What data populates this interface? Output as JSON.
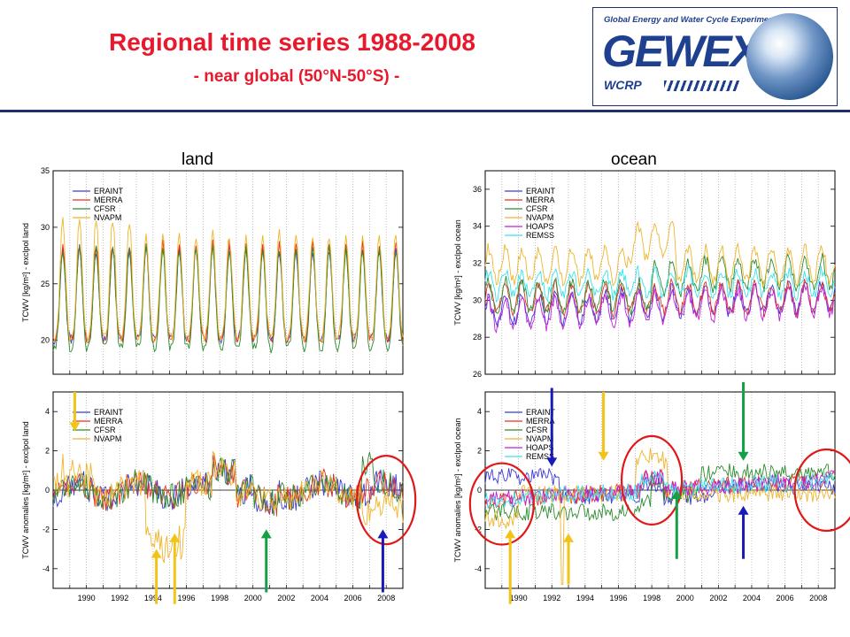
{
  "header": {
    "title": "Regional time series 1988-2008",
    "subtitle": "- near global (50°N-50°S) -",
    "logo_caption": "Global Energy and Water Cycle Experiment",
    "logo_word": "GEWEX",
    "logo_sub": "WCRP",
    "rule_color": "#1f2f6b",
    "title_color": "#e8192c"
  },
  "panel_labels": {
    "land": "land",
    "ocean": "ocean"
  },
  "colors": {
    "ERAINT": "#3b3bd6",
    "MERRA": "#e8331f",
    "CFSR": "#2e8b2e",
    "NVAPM": "#f0b429",
    "HOAPS": "#c21fd6",
    "REMSS": "#35e3ee",
    "highlight_circle": "#e01818",
    "arrow_yellow": "#f2c418",
    "arrow_green": "#14a046",
    "arrow_blue": "#1a1ab8"
  },
  "chart_data": [
    {
      "id": "land_tcwv",
      "type": "line",
      "ylabel": "TCWV [kg/m²] - exclpol land",
      "ylim": [
        17,
        35
      ],
      "yticks": [
        20,
        25,
        30,
        35
      ],
      "xlim": [
        1988,
        2009
      ],
      "xticks": [],
      "grid": "vertical dotted",
      "legend": "top-left",
      "series": [
        {
          "name": "ERAINT",
          "mean": 23.2,
          "amp": 4.0
        },
        {
          "name": "MERRA",
          "mean": 23.4,
          "amp": 4.2
        },
        {
          "name": "CFSR",
          "mean": 22.8,
          "amp": 4.4
        },
        {
          "name": "NVAPM",
          "mean": 23.9,
          "amp": 4.6
        }
      ]
    },
    {
      "id": "ocean_tcwv",
      "type": "line",
      "ylabel": "TCWV [kg/m²] - exclpol ocean",
      "ylim": [
        26,
        37
      ],
      "yticks": [
        26,
        28,
        30,
        32,
        34,
        36
      ],
      "xlim": [
        1988,
        2009
      ],
      "xticks": [],
      "grid": "vertical dotted",
      "legend": "top-left",
      "series": [
        {
          "name": "ERAINT",
          "mean": 29.8,
          "amp": 0.9
        },
        {
          "name": "MERRA",
          "mean": 30.1,
          "amp": 0.9
        },
        {
          "name": "CFSR",
          "mean": 30.6,
          "amp": 1.0
        },
        {
          "name": "NVAPM",
          "mean": 31.9,
          "amp": 1.1
        },
        {
          "name": "HOAPS",
          "mean": 29.6,
          "amp": 0.9
        },
        {
          "name": "REMSS",
          "mean": 30.9,
          "amp": 0.8
        }
      ]
    },
    {
      "id": "land_anom",
      "type": "line",
      "ylabel": "TCWV anomalies [kg/m²] - exclpol land",
      "ylim": [
        -5,
        5
      ],
      "yticks": [
        -4,
        -2,
        0,
        2,
        4
      ],
      "xlim": [
        1988,
        2009
      ],
      "xticks": [
        1990,
        1992,
        1994,
        1996,
        1998,
        2000,
        2002,
        2004,
        2006,
        2008
      ],
      "grid": "vertical dotted",
      "legend": "top-left",
      "series": [
        {
          "name": "ERAINT"
        },
        {
          "name": "MERRA"
        },
        {
          "name": "CFSR"
        },
        {
          "name": "NVAPM"
        }
      ]
    },
    {
      "id": "ocean_anom",
      "type": "line",
      "ylabel": "TCWV anomalies [kg/m²] - exclpol ocean",
      "ylim": [
        -5,
        5
      ],
      "yticks": [
        -4,
        -2,
        0,
        2,
        4
      ],
      "xlim": [
        1988,
        2009
      ],
      "xticks": [
        1990,
        1992,
        1994,
        1996,
        1998,
        2000,
        2002,
        2004,
        2006,
        2008
      ],
      "grid": "vertical dotted",
      "legend": "top-left",
      "series": [
        {
          "name": "ERAINT"
        },
        {
          "name": "MERRA"
        },
        {
          "name": "CFSR"
        },
        {
          "name": "NVAPM"
        },
        {
          "name": "HOAPS"
        },
        {
          "name": "REMSS"
        }
      ]
    }
  ],
  "annotations": {
    "land_circles": [
      {
        "x": 2008.0,
        "y": -0.5
      }
    ],
    "ocean_circles": [
      {
        "x": 1989.0,
        "y": -0.7
      },
      {
        "x": 1998.0,
        "y": 0.5
      },
      {
        "x": 2008.5,
        "y": 0.0
      }
    ],
    "land_arrows": [
      {
        "color": "yellow",
        "x": 1989.3,
        "from": 5.0,
        "to": 3.0
      },
      {
        "color": "yellow",
        "x": 1994.2,
        "from": -5.8,
        "to": -3.0
      },
      {
        "color": "yellow",
        "x": 1995.3,
        "from": -5.8,
        "to": -2.2
      },
      {
        "color": "green",
        "x": 2000.8,
        "from": -5.2,
        "to": -2.0
      },
      {
        "color": "blue",
        "x": 2007.8,
        "from": -5.2,
        "to": -2.0
      }
    ],
    "ocean_arrows": [
      {
        "color": "blue",
        "x": 1992.0,
        "from": 5.2,
        "to": 1.2
      },
      {
        "color": "yellow",
        "x": 1995.1,
        "from": 5.0,
        "to": 1.5
      },
      {
        "color": "green",
        "x": 2003.5,
        "from": 5.5,
        "to": 1.5
      },
      {
        "color": "yellow",
        "x": 1989.5,
        "from": -5.8,
        "to": -2.0
      },
      {
        "color": "yellow",
        "x": 1993.0,
        "from": -4.8,
        "to": -2.2
      },
      {
        "color": "green",
        "x": 1999.5,
        "from": -3.5,
        "to": 0.0
      },
      {
        "color": "blue",
        "x": 2003.5,
        "from": -3.5,
        "to": -0.8
      }
    ]
  }
}
